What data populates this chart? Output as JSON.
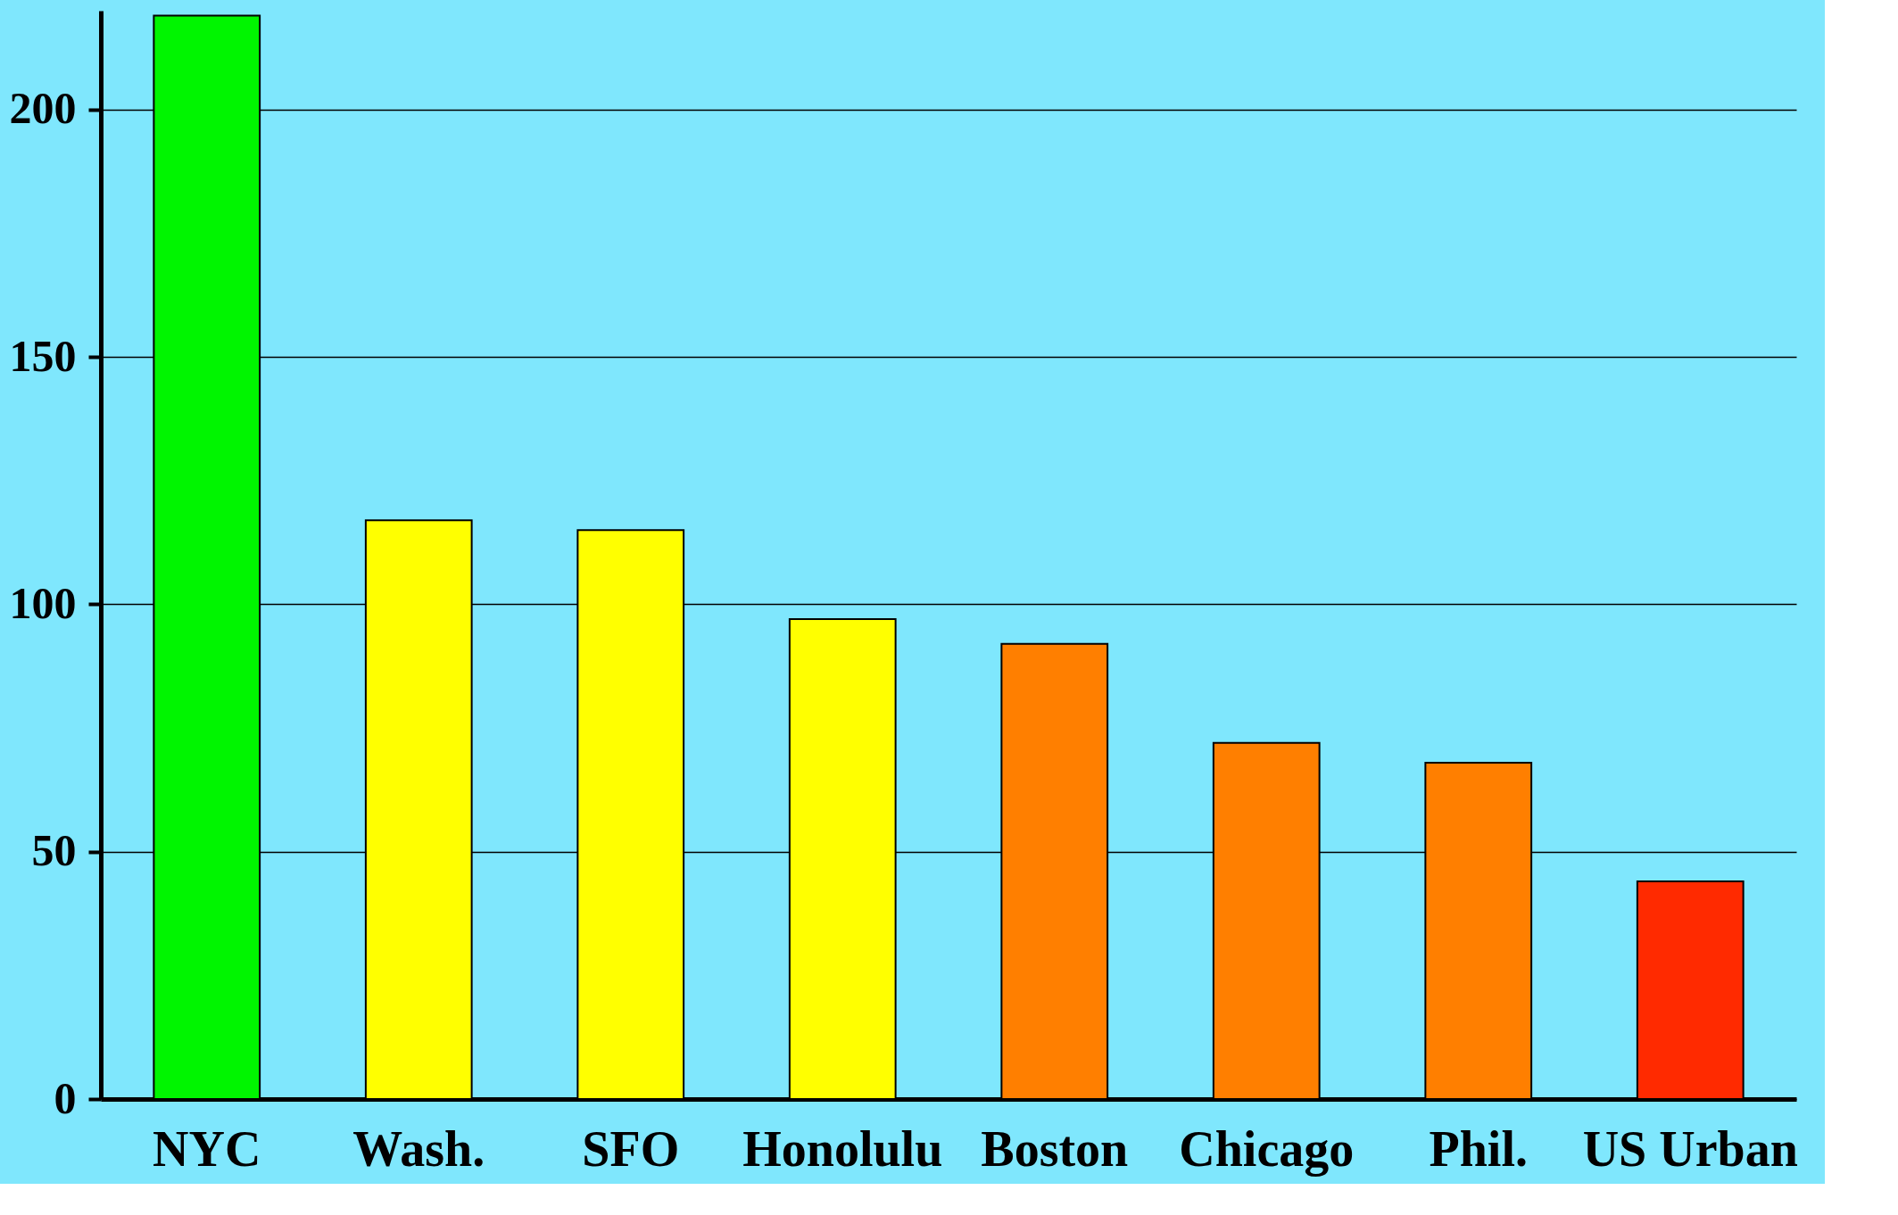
{
  "chart_data": {
    "type": "bar",
    "categories": [
      "NYC",
      "Wash.",
      "SFO",
      "Honolulu",
      "Boston",
      "Chicago",
      "Phil.",
      "US Urban"
    ],
    "values": [
      219,
      117,
      115,
      97,
      92,
      72,
      68,
      44
    ],
    "colors": [
      "#00f500",
      "#ffff00",
      "#ffff00",
      "#ffff00",
      "#ff7f00",
      "#ff7f00",
      "#ff7f00",
      "#ff2a00"
    ],
    "ylim": [
      0,
      220
    ],
    "yticks": [
      0,
      50,
      100,
      150,
      200
    ],
    "grid": "y"
  }
}
